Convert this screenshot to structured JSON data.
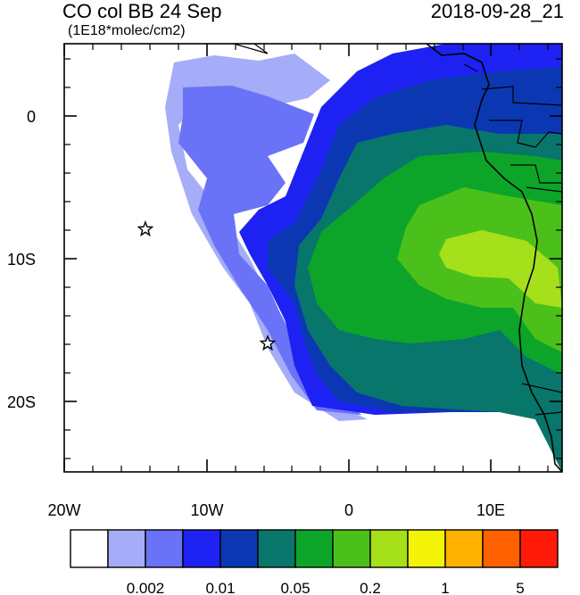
{
  "title": {
    "left": "CO col BB 24 Sep",
    "units": "(1E18*molec/cm2)",
    "right": "2018-09-28_21"
  },
  "axes": {
    "x_ticks": [
      "20W",
      "10W",
      "0",
      "10E"
    ],
    "y_ticks": [
      "0",
      "10S",
      "20S"
    ]
  },
  "colorbar": {
    "colors": [
      "#ffffff",
      "#a5acf8",
      "#6a72f7",
      "#1d22f2",
      "#0b37b3",
      "#08766a",
      "#0ca52a",
      "#4cc01a",
      "#a6e01b",
      "#f2f306",
      "#ffb000",
      "#ff6000",
      "#ff1a0a"
    ],
    "labels": [
      "0.002",
      "0.01",
      "0.05",
      "0.2",
      "1",
      "5"
    ]
  },
  "markers": [
    {
      "name": "star",
      "lon": -14.3,
      "lat": -8.0
    },
    {
      "name": "star",
      "lon": -5.7,
      "lat": -16.0
    }
  ]
}
